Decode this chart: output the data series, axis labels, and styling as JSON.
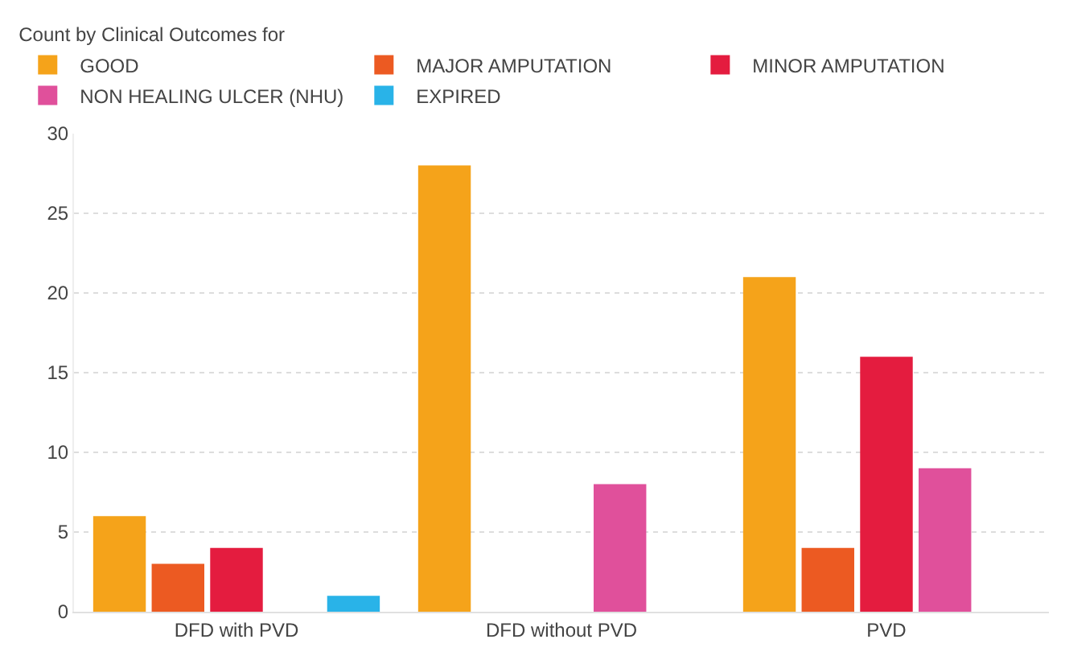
{
  "chart_data": {
    "type": "bar",
    "legend_title": "Count by Clinical Outcomes for",
    "categories": [
      "DFD with PVD",
      "DFD without PVD",
      "PVD"
    ],
    "series": [
      {
        "name": "GOOD",
        "color": "#f5a31a",
        "values": [
          6,
          28,
          21
        ]
      },
      {
        "name": "MAJOR AMPUTATION",
        "color": "#ec5a22",
        "values": [
          3,
          null,
          4
        ]
      },
      {
        "name": "MINOR AMPUTATION",
        "color": "#e41c3f",
        "values": [
          4,
          null,
          16
        ]
      },
      {
        "name": "NON HEALING ULCER (NHU)",
        "color": "#e0509b",
        "values": [
          null,
          8,
          9
        ]
      },
      {
        "name": "EXPIRED",
        "color": "#29b3e8",
        "values": [
          1,
          null,
          null
        ]
      }
    ],
    "ylim": [
      0,
      30
    ],
    "yticks": [
      0,
      5,
      10,
      15,
      20,
      25,
      30
    ],
    "grid": "y",
    "legend": "top left"
  }
}
